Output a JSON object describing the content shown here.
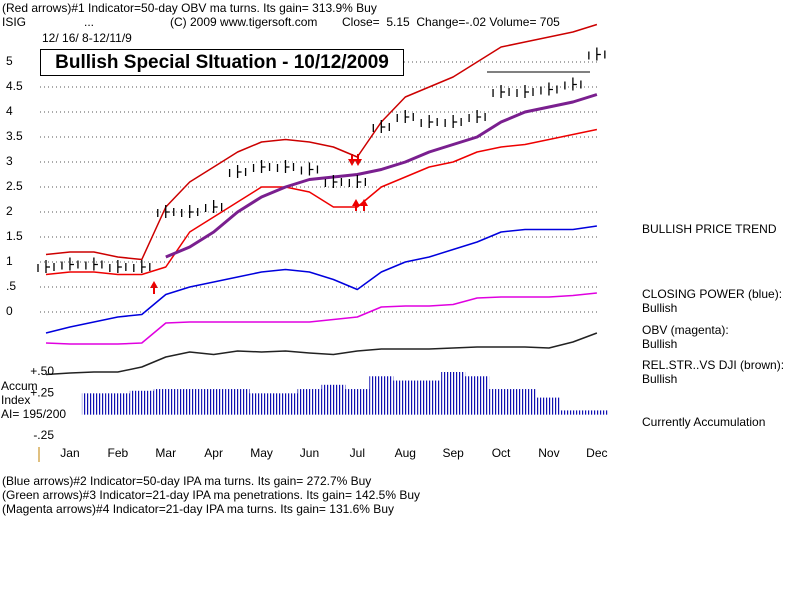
{
  "header": {
    "line1": "(Red arrows)#1 Indicator=50-day OBV ma turns. Its gain= 313.9% Buy",
    "symbol": "ISIG",
    "dots": "...",
    "copyright": "(C) 2009 www.tigersoft.com",
    "quote": "Close=  5.15  Change=-.02 Volume= 705",
    "dates": "12/ 16/ 8-12/11/9"
  },
  "chart_data": [
    {
      "type": "line",
      "title": "Bullish Special SItuation - 10/12/2009",
      "categories": [
        null,
        "Jan",
        null,
        "Feb",
        null,
        "Mar",
        null,
        "Apr",
        null,
        "May",
        null,
        "Jun",
        null,
        "Jul",
        null,
        "Aug",
        null,
        "Sep",
        null,
        "Oct",
        null,
        "Nov",
        null,
        "Dec"
      ],
      "ylim": [
        -1.3,
        5.65
      ],
      "yticks": [
        5,
        4.5,
        4,
        3.5,
        3,
        2.5,
        2,
        1.5,
        1,
        {
          "value": 0.5,
          "label": ".5"
        },
        0
      ],
      "grid": true,
      "series": [
        {
          "name": "Upper band",
          "color": "#cc0000",
          "style": "line",
          "values": [
            1.15,
            1.2,
            1.2,
            1.1,
            1.05,
            2.1,
            2.6,
            2.9,
            3.2,
            3.4,
            3.45,
            3.4,
            3.3,
            3.1,
            3.8,
            4.3,
            4.5,
            4.7,
            5.0,
            5.3,
            5.4,
            5.5,
            5.6,
            5.75
          ]
        },
        {
          "name": "Lower band",
          "color": "#ee0000",
          "style": "line",
          "values": [
            0.75,
            0.8,
            0.8,
            0.75,
            0.75,
            0.9,
            1.6,
            1.9,
            2.2,
            2.5,
            2.5,
            2.4,
            2.1,
            2.1,
            2.5,
            2.7,
            2.9,
            3.0,
            3.2,
            3.3,
            3.35,
            3.45,
            3.55,
            3.65
          ]
        },
        {
          "name": "Moving average",
          "color": "#7a1f8f",
          "style": "thick",
          "values": [
            null,
            null,
            null,
            null,
            null,
            1.1,
            1.3,
            1.6,
            2.0,
            2.3,
            2.5,
            2.65,
            2.7,
            2.75,
            2.85,
            3.0,
            3.2,
            3.35,
            3.5,
            3.8,
            4.0,
            4.1,
            4.2,
            4.35
          ]
        },
        {
          "name": "Price",
          "color": "#000000",
          "style": "price-bars",
          "values": [
            0.9,
            0.95,
            0.95,
            0.9,
            0.9,
            2.0,
            2.0,
            2.1,
            2.8,
            2.9,
            2.9,
            2.85,
            2.6,
            2.6,
            3.7,
            3.9,
            3.8,
            3.8,
            3.9,
            4.4,
            4.4,
            4.45,
            4.55,
            5.15
          ]
        },
        {
          "name": "Closing Power",
          "color": "#0000dd",
          "style": "line",
          "values": [
            -0.42,
            -0.3,
            -0.2,
            -0.1,
            -0.05,
            0.35,
            0.5,
            0.6,
            0.7,
            0.8,
            0.85,
            0.8,
            0.65,
            0.45,
            0.8,
            1.0,
            1.1,
            1.25,
            1.4,
            1.6,
            1.65,
            1.65,
            1.65,
            1.72
          ]
        },
        {
          "name": "OBV",
          "color": "#e000e0",
          "style": "line",
          "values": [
            -0.62,
            -0.64,
            -0.64,
            -0.64,
            -0.62,
            -0.22,
            -0.2,
            -0.2,
            -0.2,
            -0.2,
            -0.2,
            -0.2,
            -0.15,
            -0.1,
            0.1,
            0.12,
            0.12,
            0.15,
            0.28,
            0.3,
            0.3,
            0.3,
            0.33,
            0.38
          ]
        },
        {
          "name": "Rel.Str. vs DJI",
          "color": "#222222",
          "style": "line",
          "values": [
            -1.25,
            -1.22,
            -1.2,
            -1.2,
            -1.1,
            -0.9,
            -0.8,
            -0.85,
            -0.78,
            -0.8,
            -0.78,
            -0.82,
            -0.85,
            -0.78,
            -0.74,
            -0.74,
            -0.74,
            -0.72,
            -0.7,
            -0.7,
            -0.7,
            -0.72,
            -0.6,
            -0.42
          ]
        }
      ]
    },
    {
      "type": "bar",
      "ylim": [
        -0.25,
        0.5
      ],
      "yticks": [
        {
          "value": 0.5,
          "label": "+.50"
        },
        {
          "value": 0.25,
          "label": "+.25"
        },
        {
          "value": -0.25,
          "label": "-.25"
        }
      ],
      "color": "#1010b0",
      "values": [
        null,
        null,
        0.25,
        0.25,
        0.28,
        0.3,
        0.3,
        0.3,
        0.3,
        0.25,
        0.25,
        0.3,
        0.35,
        0.3,
        0.45,
        0.4,
        0.4,
        0.5,
        0.45,
        0.3,
        0.3,
        0.2,
        0.05,
        0.05
      ]
    }
  ],
  "accum_labels": [
    "Accum",
    "Index",
    "AI= 195/200"
  ],
  "side_labels": [
    "BULLISH PRICE TREND",
    "CLOSING POWER (blue):",
    "Bullish",
    "OBV (magenta):",
    "Bullish",
    "REL.STR..VS DJI (brown):",
    "Bullish",
    "Currently Accumulation"
  ],
  "footer": [
    "(Blue arrows)#2 Indicator=50-day IPA ma turns. Its gain= 272.7% Buy",
    "(Green arrows)#3 Indicator=21-day IPA ma penetrations. Its gain= 142.5% Buy",
    "(Magenta arrows)#4 Indicator=21-day IPA ma turns. Its gain= 131.6% Buy"
  ]
}
